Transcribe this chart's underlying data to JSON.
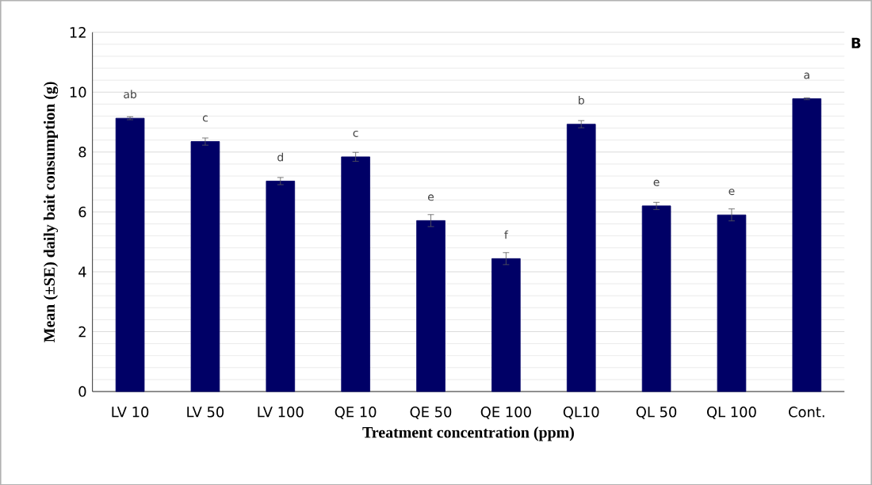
{
  "chart_data": {
    "type": "bar",
    "xlabel": "Treatment concentration (ppm)",
    "ylabel": "Mean (±SE) daily bait consumption (g)",
    "categories": [
      "LV 10",
      "LV 50",
      "LV 100",
      "QE 10",
      "QE 50",
      "QE 100",
      "QL10",
      "QL 50",
      "QL 100",
      "Cont."
    ],
    "values": [
      9.13,
      8.35,
      7.03,
      7.84,
      5.71,
      4.44,
      8.93,
      6.2,
      5.9,
      9.78
    ],
    "errors": [
      0.05,
      0.12,
      0.12,
      0.15,
      0.2,
      0.2,
      0.12,
      0.12,
      0.2,
      0.03
    ],
    "color": "#000066",
    "ylim": [
      0,
      12
    ],
    "yticks": [
      0,
      2,
      4,
      6,
      8,
      10,
      12
    ],
    "grid": "y",
    "annotations": [
      {
        "text": "ab",
        "x": "LV 10",
        "y": 9.13
      },
      {
        "text": "c",
        "x": "LV 50",
        "y": 8.35
      },
      {
        "text": "d",
        "x": "LV 100",
        "y": 7.03
      },
      {
        "text": "c",
        "x": "QE 10",
        "y": 7.84
      },
      {
        "text": "e",
        "x": "QE 50",
        "y": 5.71
      },
      {
        "text": "f",
        "x": "QE 100",
        "y": 4.44
      },
      {
        "text": "b",
        "x": "QL10",
        "y": 8.93
      },
      {
        "text": "e",
        "x": "QL 50",
        "y": 6.2
      },
      {
        "text": "e",
        "x": "QL 100",
        "y": 5.9
      },
      {
        "text": "a",
        "x": "Cont.",
        "y": 9.78
      },
      "B"
    ]
  }
}
